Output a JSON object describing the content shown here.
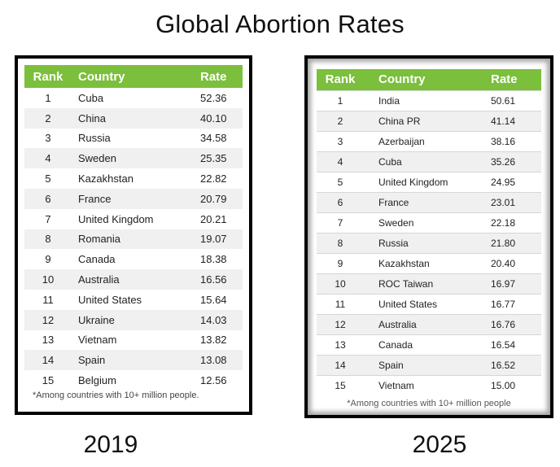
{
  "title": "Global Abortion Rates",
  "accent_color": "#7bbf3c",
  "tables": [
    {
      "year": "2019",
      "headers": {
        "rank": "Rank",
        "country": "Country",
        "rate": "Rate"
      },
      "rows": [
        {
          "rank": "1",
          "country": "Cuba",
          "rate": "52.36"
        },
        {
          "rank": "2",
          "country": "China",
          "rate": "40.10"
        },
        {
          "rank": "3",
          "country": "Russia",
          "rate": "34.58"
        },
        {
          "rank": "4",
          "country": "Sweden",
          "rate": "25.35"
        },
        {
          "rank": "5",
          "country": "Kazakhstan",
          "rate": "22.82"
        },
        {
          "rank": "6",
          "country": "France",
          "rate": "20.79"
        },
        {
          "rank": "7",
          "country": "United Kingdom",
          "rate": "20.21"
        },
        {
          "rank": "8",
          "country": "Romania",
          "rate": "19.07"
        },
        {
          "rank": "9",
          "country": "Canada",
          "rate": "18.38"
        },
        {
          "rank": "10",
          "country": "Australia",
          "rate": "16.56"
        },
        {
          "rank": "11",
          "country": "United States",
          "rate": "15.64"
        },
        {
          "rank": "12",
          "country": "Ukraine",
          "rate": "14.03"
        },
        {
          "rank": "13",
          "country": "Vietnam",
          "rate": "13.82"
        },
        {
          "rank": "14",
          "country": "Spain",
          "rate": "13.08"
        },
        {
          "rank": "15",
          "country": "Belgium",
          "rate": "12.56"
        }
      ],
      "note": "*Among countries with 10+ million people."
    },
    {
      "year": "2025",
      "headers": {
        "rank": "Rank",
        "country": "Country",
        "rate": "Rate"
      },
      "rows": [
        {
          "rank": "1",
          "country": "India",
          "rate": "50.61"
        },
        {
          "rank": "2",
          "country": "China PR",
          "rate": "41.14"
        },
        {
          "rank": "3",
          "country": "Azerbaijan",
          "rate": "38.16"
        },
        {
          "rank": "4",
          "country": "Cuba",
          "rate": "35.26"
        },
        {
          "rank": "5",
          "country": "United Kingdom",
          "rate": "24.95"
        },
        {
          "rank": "6",
          "country": "France",
          "rate": "23.01"
        },
        {
          "rank": "7",
          "country": "Sweden",
          "rate": "22.18"
        },
        {
          "rank": "8",
          "country": "Russia",
          "rate": "21.80"
        },
        {
          "rank": "9",
          "country": "Kazakhstan",
          "rate": "20.40"
        },
        {
          "rank": "10",
          "country": "ROC Taiwan",
          "rate": "16.97"
        },
        {
          "rank": "11",
          "country": "United States",
          "rate": "16.77"
        },
        {
          "rank": "12",
          "country": "Australia",
          "rate": "16.76"
        },
        {
          "rank": "13",
          "country": "Canada",
          "rate": "16.54"
        },
        {
          "rank": "14",
          "country": "Spain",
          "rate": "16.52"
        },
        {
          "rank": "15",
          "country": "Vietnam",
          "rate": "15.00"
        }
      ],
      "note": "*Among countries with 10+ million people"
    }
  ]
}
